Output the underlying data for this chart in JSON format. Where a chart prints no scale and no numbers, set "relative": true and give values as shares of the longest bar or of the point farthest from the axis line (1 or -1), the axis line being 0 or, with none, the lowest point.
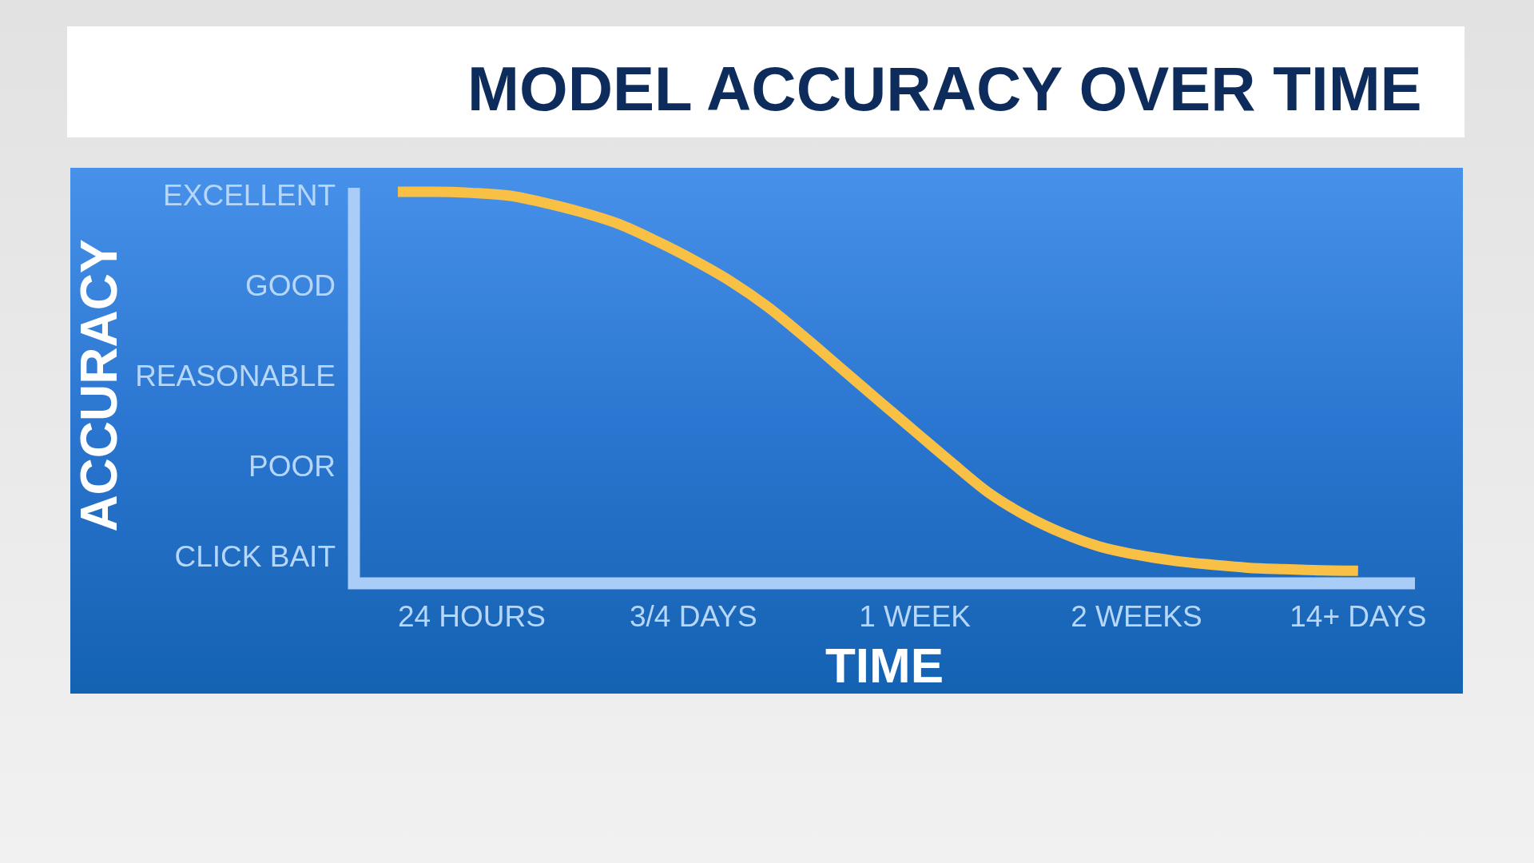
{
  "chart_data": {
    "type": "line",
    "title": "MODEL ACCURACY OVER TIME",
    "xlabel": "TIME",
    "ylabel": "ACCURACY",
    "relative": true,
    "categories": [
      null,
      null,
      "24 HOURS",
      null,
      null,
      null,
      null,
      null,
      "3/4 DAYS",
      null,
      null,
      null,
      null,
      null,
      "1 WEEK",
      null,
      null,
      null,
      null,
      null,
      "2 WEEKS",
      null,
      null,
      null,
      null,
      null,
      "14+ DAYS"
    ],
    "y_categories": [
      "EXCELLENT",
      "GOOD",
      "REASONABLE",
      "POOR",
      "CLICK BAIT"
    ],
    "series": [
      {
        "color": "#f8c146",
        "values": [
          1.0,
          1.0,
          0.997,
          0.99,
          0.971,
          0.947,
          0.917,
          0.874,
          0.826,
          0.772,
          0.707,
          0.63,
          0.549,
          0.468,
          0.388,
          0.308,
          0.231,
          0.173,
          0.128,
          0.094,
          0.073,
          0.058,
          0.048,
          0.04,
          0.036,
          0.033,
          0.032
        ]
      }
    ],
    "marker": "none"
  }
}
